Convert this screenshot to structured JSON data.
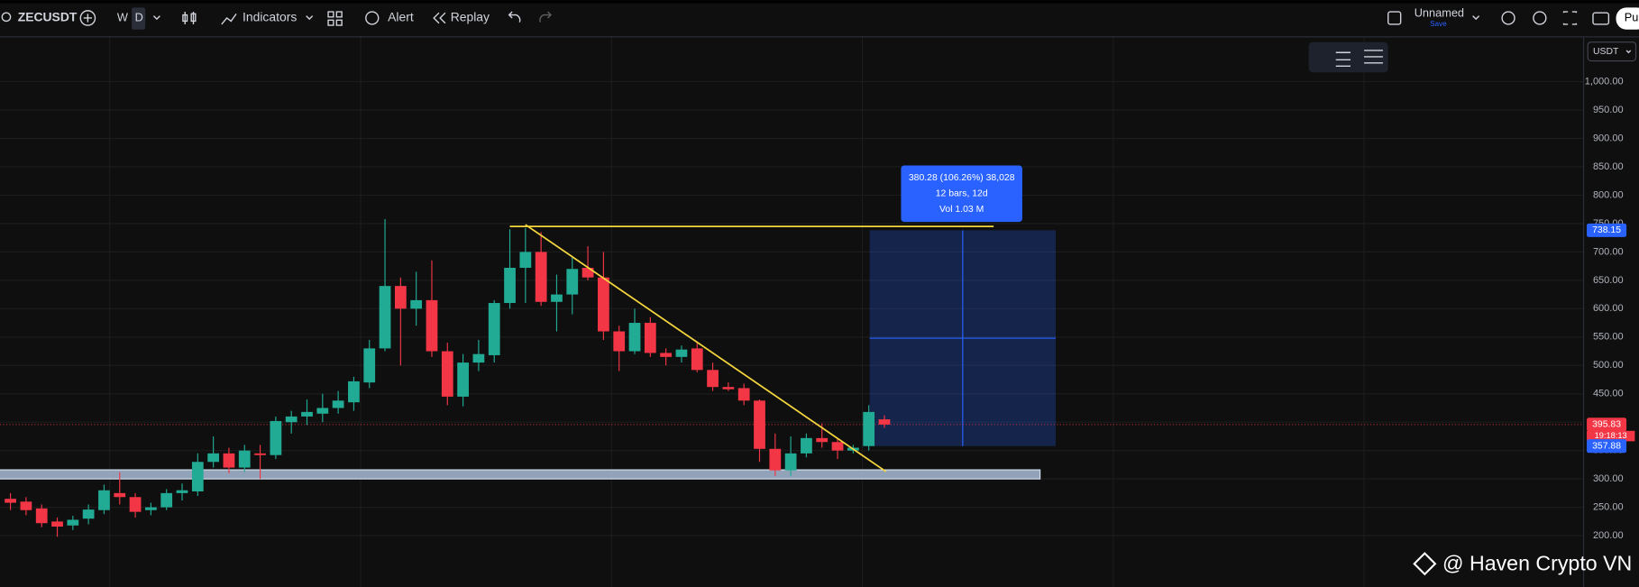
{
  "toolbar": {
    "symbol": "ZECUSDT",
    "intervals": [
      "W",
      "D"
    ],
    "indicators": "Indicators",
    "alert": "Alert",
    "replay": "Replay",
    "layout_name": "Unnamed",
    "save": "Save",
    "publish": "Pu"
  },
  "chart_data": {
    "type": "candlestick",
    "currency": "USDT",
    "series": {
      "open": [
        265,
        260,
        248,
        225,
        218,
        230,
        245,
        275,
        268,
        245,
        250,
        275,
        278,
        330,
        345,
        320,
        345,
        342,
        400,
        410,
        415,
        425,
        435,
        470,
        530,
        640,
        600,
        615,
        525,
        445,
        505,
        518,
        610,
        672,
        700,
        612,
        625,
        672,
        655,
        560,
        525,
        575,
        522,
        515,
        530,
        492,
        462,
        460,
        438,
        353,
        315,
        345,
        372,
        365,
        350,
        357.88,
        405
      ],
      "high": [
        275,
        268,
        255,
        232,
        235,
        255,
        290,
        312,
        275,
        258,
        282,
        292,
        345,
        375,
        355,
        360,
        360,
        410,
        420,
        440,
        450,
        455,
        480,
        545,
        758,
        655,
        665,
        685,
        540,
        520,
        545,
        615,
        740,
        742,
        735,
        660,
        690,
        710,
        700,
        570,
        600,
        585,
        530,
        535,
        540,
        505,
        470,
        468,
        440,
        380,
        375,
        380,
        398,
        372,
        360,
        430,
        412
      ],
      "low": [
        245,
        236,
        215,
        198,
        210,
        220,
        238,
        255,
        232,
        236,
        245,
        262,
        270,
        320,
        310,
        312,
        300,
        335,
        380,
        395,
        400,
        415,
        420,
        460,
        525,
        500,
        570,
        515,
        430,
        428,
        490,
        505,
        600,
        610,
        605,
        560,
        590,
        650,
        545,
        490,
        520,
        515,
        500,
        505,
        488,
        455,
        455,
        430,
        330,
        305,
        305,
        338,
        355,
        335,
        345,
        350,
        390
      ],
      "close": [
        258,
        245,
        222,
        216,
        228,
        246,
        280,
        268,
        242,
        250,
        275,
        280,
        330,
        345,
        320,
        350,
        342,
        402,
        410,
        418,
        425,
        438,
        472,
        530,
        640,
        600,
        615,
        525,
        445,
        505,
        520,
        610,
        672,
        700,
        612,
        625,
        670,
        655,
        560,
        525,
        575,
        522,
        515,
        528,
        492,
        462,
        458,
        438,
        353,
        315,
        345,
        372,
        365,
        350,
        355,
        418,
        395.83
      ]
    },
    "up_color": "#22ab94",
    "down_color": "#f23645",
    "ylim": [
      110,
      1079
    ],
    "yticks": [
      {
        "value": 200,
        "label": "200.00"
      },
      {
        "value": 250,
        "label": "250.00"
      },
      {
        "value": 300,
        "label": "300.00"
      },
      {
        "value": 350,
        "label": "350.00"
      },
      {
        "value": 400,
        "label": "400.00"
      },
      {
        "value": 450,
        "label": "450.00"
      },
      {
        "value": 500,
        "label": "500.00"
      },
      {
        "value": 550,
        "label": "550.00"
      },
      {
        "value": 600,
        "label": "600.00"
      },
      {
        "value": 650,
        "label": "650.00"
      },
      {
        "value": 700,
        "label": "700.00"
      },
      {
        "value": 750,
        "label": "750.00"
      },
      {
        "value": 800,
        "label": "800.00"
      },
      {
        "value": 850,
        "label": "850.00"
      },
      {
        "value": 900,
        "label": "900.00"
      },
      {
        "value": 950,
        "label": "950.00"
      },
      {
        "value": 1000,
        "label": "1,000.00"
      }
    ],
    "grid": true,
    "last_price": 395.83,
    "countdown": "19:18:13",
    "price_labels": [
      738.15,
      357.88
    ],
    "measure": {
      "lines": [
        "380.28 (106.26%) 38,028",
        "12 bars, 12d",
        "Vol 1.03 M"
      ],
      "color": "#2962ff"
    },
    "resistance": 745,
    "trendline": [
      748,
      313
    ],
    "support_zone": [
      300,
      316
    ],
    "drawing_color": "#f5d63d"
  },
  "watermark": "@ Haven Crypto VN"
}
